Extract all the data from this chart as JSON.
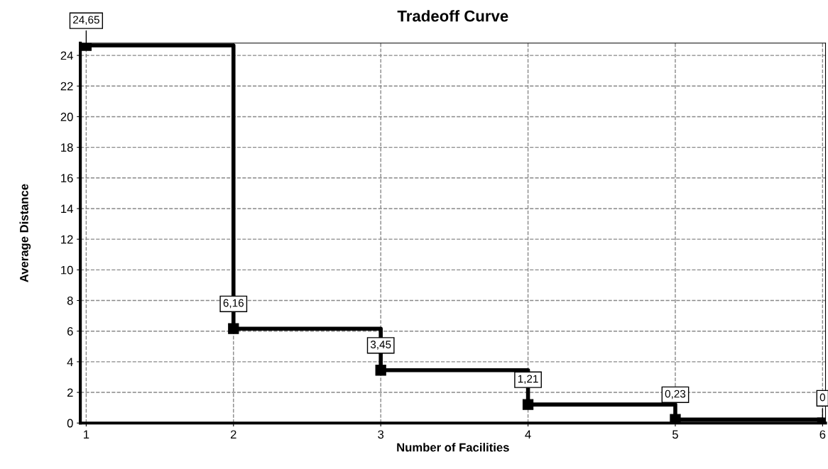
{
  "chart_data": {
    "type": "step",
    "title": "Tradeoff Curve",
    "xlabel": "Number of Facilities",
    "ylabel": "Average Distance",
    "x": [
      1,
      2,
      3,
      4,
      5,
      6
    ],
    "series": [
      {
        "color": "#000000",
        "values": [
          24.65,
          6.16,
          3.45,
          1.21,
          0.23,
          0
        ],
        "value_labels": [
          "24,65",
          "6,16",
          "3,45",
          "1,21",
          "0,23",
          "0"
        ]
      }
    ],
    "xlim": [
      0.96,
      6.02
    ],
    "xticks": [
      1,
      2,
      3,
      4,
      5,
      6
    ],
    "ylim": [
      0,
      24.8
    ],
    "yticks": [
      0,
      2,
      4,
      6,
      8,
      10,
      12,
      14,
      16,
      18,
      20,
      22,
      24
    ],
    "grid": true,
    "marker": "square",
    "line_style": "solid",
    "legend": false
  }
}
